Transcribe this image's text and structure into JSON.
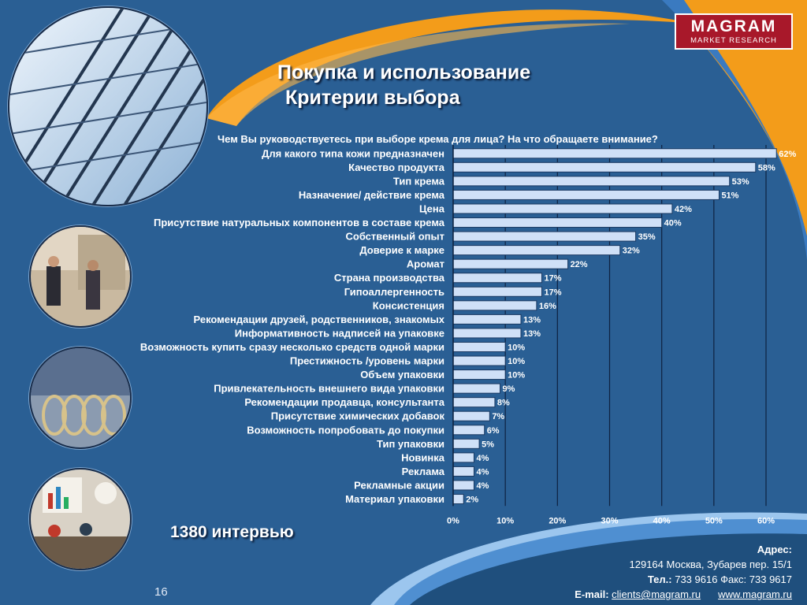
{
  "brand": {
    "name": "MAGRAM",
    "sub": "MARKET RESEARCH"
  },
  "title": {
    "line1": "Покупка и  использование",
    "line2": "Критерии выбора"
  },
  "question": "Чем Вы руководствуетесь при выборе крема для лица? На что обращаете внимание?",
  "interviews": "1380 интервью",
  "page_number": "16",
  "contacts": {
    "address_label": "Адрес:",
    "address": "129164 Москва, Зубарев пер. 15/1",
    "phone_label": "Тел.:",
    "phone": "733 9616",
    "fax_label": "Факс:",
    "fax": "733 9617",
    "email_label": "E-mail:",
    "email": "clients@magram.ru",
    "website": "www.magram.ru"
  },
  "colors": {
    "background": "#2a5f94",
    "accent_orange": "#f39c1a",
    "bar_fill": "#cfe0f7",
    "logo_red": "#a8182a"
  },
  "chart_data": {
    "type": "bar",
    "orientation": "horizontal",
    "title": "",
    "xlabel": "",
    "ylabel": "",
    "xlim": [
      0,
      60
    ],
    "ticks": [
      0,
      10,
      20,
      30,
      40,
      50,
      60
    ],
    "tick_labels": [
      "0%",
      "10%",
      "20%",
      "30%",
      "40%",
      "50%",
      "60%"
    ],
    "grid": "vertical",
    "categories": [
      "Для какого типа кожи предназначен",
      "Качество продукта",
      "Тип крема",
      "Назначение/ действие крема",
      "Цена",
      "Присутствие натуральных компонентов в составе крема",
      "Собственный опыт",
      "Доверие к марке",
      "Аромат",
      "Страна производства",
      "Гипоаллергенность",
      "Консистенция",
      "Рекомендации друзей, родственников,  знакомых",
      "Информативность надписей на упаковке",
      "Возможность купить сразу несколько средств одной марки",
      "Престижность /уровень  марки",
      "Объем упаковки",
      "Привлекательность внешнего вида упаковки",
      "Рекомендации продавца, консультанта",
      "Присутствие химических добавок",
      "Возможность попробовать до покупки",
      "Тип упаковки",
      "Новинка",
      "Реклама",
      "Рекламные акции",
      "Материал упаковки"
    ],
    "values": [
      62,
      58,
      53,
      51,
      42,
      40,
      35,
      32,
      22,
      17,
      17,
      16,
      13,
      13,
      10,
      10,
      10,
      9,
      8,
      7,
      6,
      5,
      4,
      4,
      4,
      2
    ],
    "value_labels": [
      "62%",
      "58%",
      "53%",
      "51%",
      "42%",
      "40%",
      "35%",
      "32%",
      "22%",
      "17%",
      "17%",
      "16%",
      "13%",
      "13%",
      "10%",
      "10%",
      "10%",
      "9%",
      "8%",
      "7%",
      "6%",
      "5%",
      "4%",
      "4%",
      "4%",
      "2%"
    ]
  }
}
